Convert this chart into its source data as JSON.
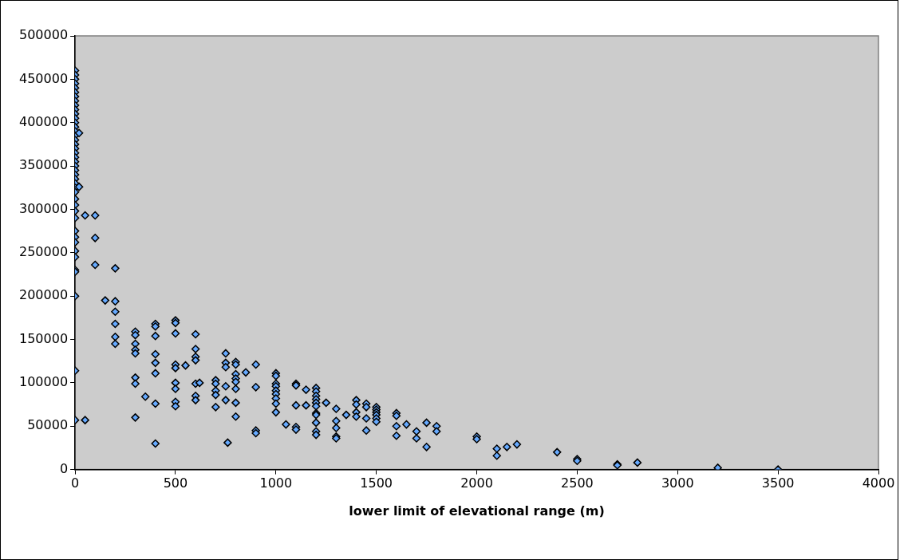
{
  "chart_data": {
    "type": "scatter",
    "xlabel": "lower limit of elevational range (m)",
    "xlim": [
      0,
      4000
    ],
    "xticks": [
      0,
      500,
      1000,
      1500,
      2000,
      2500,
      3000,
      3500,
      4000
    ],
    "ylim": [
      0,
      500000
    ],
    "yticks": [
      0,
      50000,
      100000,
      150000,
      200000,
      250000,
      300000,
      350000,
      400000,
      450000,
      500000
    ],
    "grid": false,
    "legend": false,
    "marker": "diamond",
    "series": [
      {
        "color": "#66aaff",
        "x": [
          0,
          0,
          0,
          0,
          0,
          0,
          0,
          0,
          0,
          0,
          0,
          0,
          0,
          0,
          0,
          0,
          0,
          0,
          0,
          0,
          0,
          0,
          0,
          0,
          0,
          0,
          0,
          0,
          0,
          0,
          0,
          0,
          0,
          0,
          0,
          0,
          0,
          0,
          0,
          0,
          0,
          0,
          0,
          20,
          20,
          50,
          50,
          100,
          100,
          100,
          150,
          200,
          200,
          200,
          200,
          200,
          200,
          300,
          300,
          300,
          300,
          300,
          300,
          300,
          300,
          350,
          400,
          400,
          400,
          400,
          400,
          400,
          400,
          400,
          500,
          500,
          500,
          500,
          500,
          500,
          500,
          500,
          500,
          550,
          600,
          600,
          600,
          600,
          600,
          600,
          600,
          620,
          700,
          700,
          700,
          700,
          700,
          750,
          750,
          750,
          750,
          750,
          760,
          800,
          800,
          800,
          800,
          800,
          800,
          800,
          800,
          850,
          900,
          900,
          900,
          900,
          1000,
          1000,
          1000,
          1000,
          1000,
          1000,
          1000,
          1000,
          1000,
          1050,
          1100,
          1100,
          1100,
          1100,
          1100,
          1150,
          1150,
          1200,
          1200,
          1200,
          1200,
          1200,
          1200,
          1200,
          1200,
          1200,
          1200,
          1200,
          1250,
          1300,
          1300,
          1300,
          1300,
          1300,
          1350,
          1400,
          1400,
          1400,
          1400,
          1450,
          1450,
          1450,
          1450,
          1500,
          1500,
          1500,
          1500,
          1500,
          1500,
          1600,
          1600,
          1600,
          1600,
          1650,
          1700,
          1700,
          1750,
          1750,
          1800,
          1800,
          2000,
          2000,
          2100,
          2100,
          2150,
          2200,
          2400,
          2500,
          2500,
          2700,
          2700,
          2800,
          3200,
          3500
        ],
        "values": [
          460000,
          455000,
          450000,
          445000,
          440000,
          435000,
          430000,
          425000,
          420000,
          415000,
          410000,
          405000,
          400000,
          395000,
          390000,
          385000,
          380000,
          375000,
          370000,
          365000,
          360000,
          355000,
          350000,
          345000,
          340000,
          335000,
          330000,
          325000,
          320000,
          312000,
          305000,
          298000,
          290000,
          275000,
          268000,
          262000,
          252000,
          245000,
          230000,
          228000,
          200000,
          114000,
          57000,
          388000,
          326000,
          293000,
          57000,
          293000,
          267000,
          236000,
          195000,
          232000,
          194000,
          182000,
          168000,
          153000,
          145000,
          159000,
          155000,
          145000,
          138000,
          134000,
          106000,
          99000,
          60000,
          84000,
          168000,
          165000,
          154000,
          133000,
          123000,
          111000,
          76000,
          30000,
          172000,
          169000,
          157000,
          121000,
          117000,
          100000,
          93000,
          78000,
          73000,
          120000,
          156000,
          139000,
          130000,
          126000,
          99000,
          85000,
          80000,
          100000,
          103000,
          99000,
          91000,
          86000,
          72000,
          134000,
          123000,
          118000,
          96000,
          80000,
          31000,
          124000,
          121000,
          110000,
          105000,
          101000,
          93000,
          77000,
          61000,
          112000,
          121000,
          95000,
          45000,
          42000,
          111000,
          108000,
          99000,
          96000,
          91000,
          87000,
          82000,
          76000,
          66000,
          52000,
          99000,
          97000,
          74000,
          49000,
          46000,
          92000,
          74000,
          94000,
          90000,
          85000,
          81000,
          77000,
          73000,
          65000,
          63000,
          54000,
          44000,
          40000,
          77000,
          70000,
          56000,
          48000,
          38000,
          36000,
          63000,
          80000,
          75000,
          66000,
          61000,
          76000,
          72000,
          59000,
          45000,
          72000,
          69000,
          66000,
          63000,
          59000,
          55000,
          65000,
          62000,
          50000,
          39000,
          52000,
          44000,
          36000,
          54000,
          26000,
          50000,
          44000,
          38000,
          35000,
          24000,
          16000,
          26000,
          29000,
          20000,
          12000,
          10000,
          6000,
          5000,
          8000,
          2000,
          0
        ]
      }
    ]
  }
}
